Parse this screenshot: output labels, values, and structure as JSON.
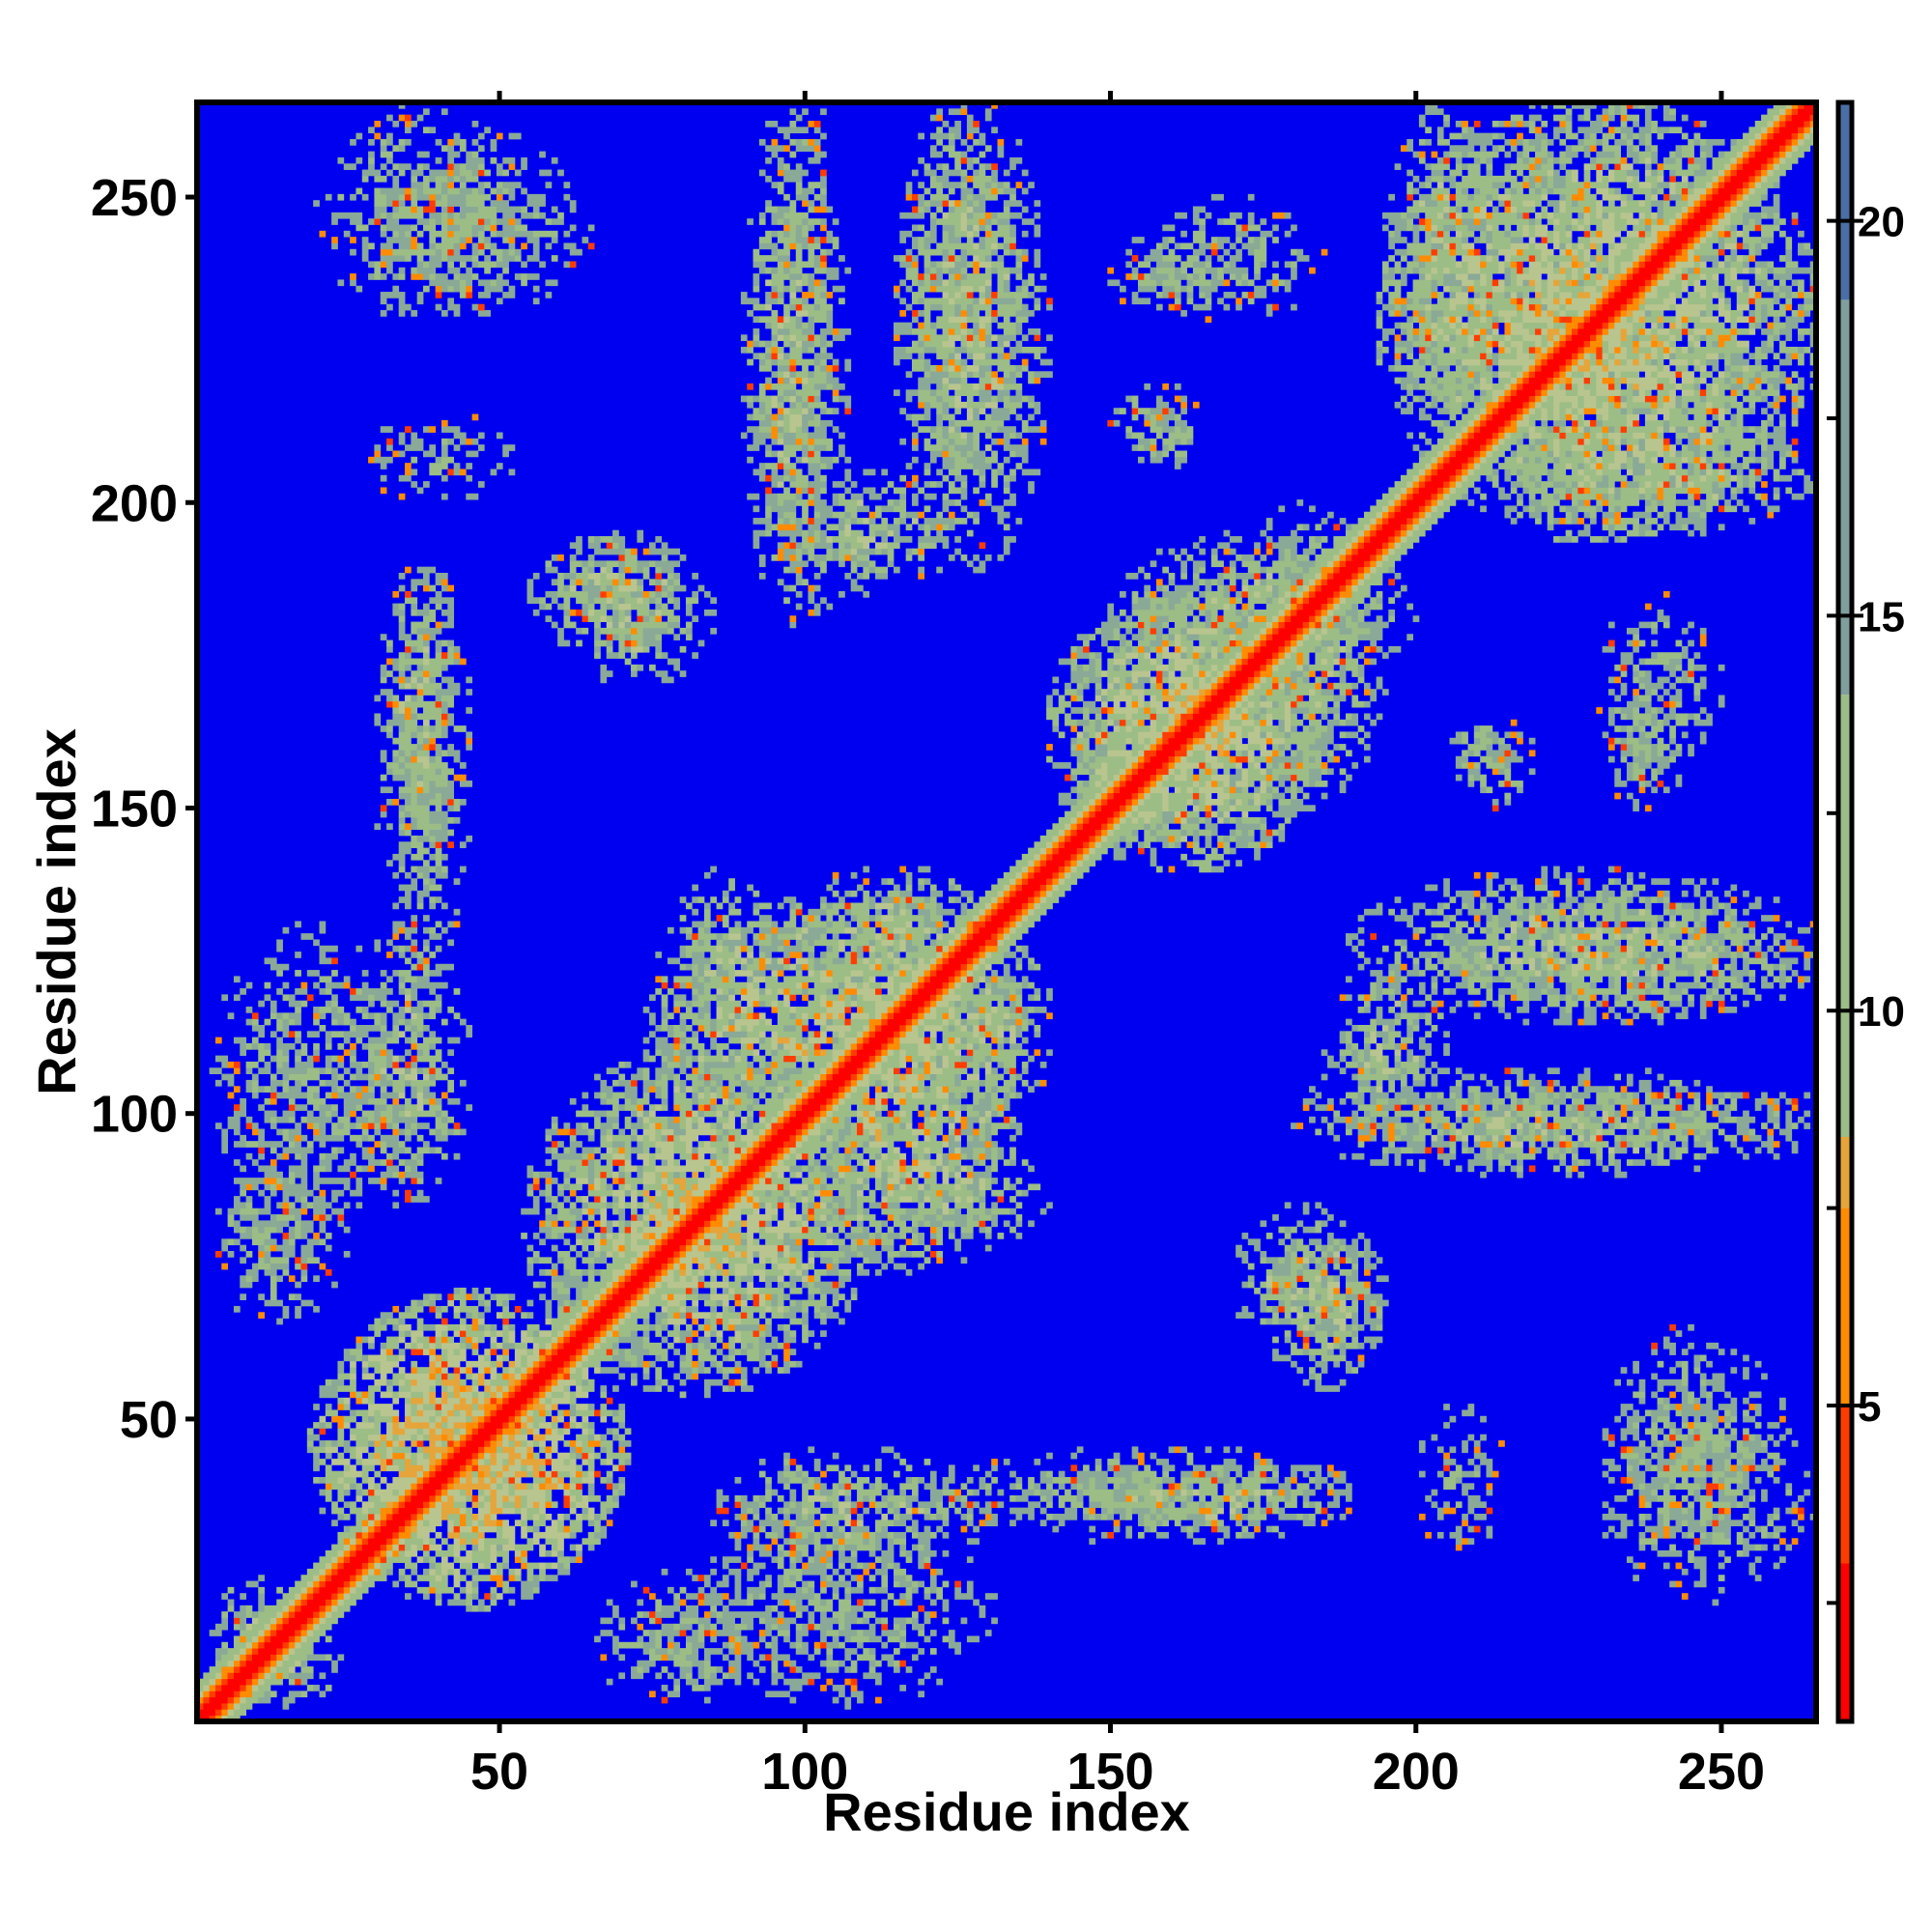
{
  "chart_data": {
    "type": "heatmap",
    "title": "",
    "xlabel": "Residue index",
    "ylabel": "Residue index",
    "n_residues": 265,
    "xlim": [
      1,
      265
    ],
    "ylim": [
      1,
      265
    ],
    "x_ticks": [
      50,
      100,
      150,
      200,
      250
    ],
    "y_ticks": [
      50,
      100,
      150,
      200,
      250
    ],
    "x_tick_labels": [
      "50",
      "100",
      "150",
      "200",
      "250"
    ],
    "y_tick_labels": [
      "50",
      "100",
      "150",
      "200",
      "250"
    ],
    "colorbar": {
      "min": 1,
      "max": 21.5,
      "ticks": [
        5,
        10,
        15,
        20
      ],
      "tick_labels": [
        "5",
        "10",
        "15",
        "20"
      ],
      "colors": [
        "#ff0000",
        "#ff8c00",
        "#9cbd86",
        "#4a6fa5"
      ],
      "background_value_color": "#0000f0"
    },
    "diagonal": {
      "description_values": "distance ~1 on diagonal increasing to ~8 at |i-j|=4",
      "core_value": 1,
      "band_halfwidth": 6
    },
    "contact_regions": [
      {
        "x": [
          20,
          70
        ],
        "y": [
          20,
          70
        ],
        "value": 9
      },
      {
        "x": [
          55,
          110
        ],
        "y": [
          55,
          110
        ],
        "value": 10
      },
      {
        "x": [
          75,
          135
        ],
        "y": [
          95,
          135
        ],
        "value": 10
      },
      {
        "x": [
          100,
          140
        ],
        "y": [
          75,
          100
        ],
        "value": 11
      },
      {
        "x": [
          95,
          135
        ],
        "y": [
          120,
          140
        ],
        "value": 11
      },
      {
        "x": [
          140,
          185
        ],
        "y": [
          140,
          185
        ],
        "value": 10
      },
      {
        "x": [
          150,
          200
        ],
        "y": [
          170,
          195
        ],
        "value": 11
      },
      {
        "x": [
          195,
          265
        ],
        "y": [
          195,
          265
        ],
        "value": 10
      },
      {
        "x": [
          200,
          240
        ],
        "y": [
          220,
          240
        ],
        "value": 11
      },
      {
        "x": [
          215,
          265
        ],
        "y": [
          195,
          215
        ],
        "value": 11
      },
      {
        "x": [
          200,
          265
        ],
        "y": [
          115,
          135
        ],
        "value": 11
      },
      {
        "x": [
          180,
          265
        ],
        "y": [
          93,
          108
        ],
        "value": 12
      },
      {
        "x": [
          170,
          195
        ],
        "y": [
          60,
          85
        ],
        "value": 11
      },
      {
        "x": [
          120,
          190
        ],
        "y": [
          30,
          45
        ],
        "value": 12
      },
      {
        "x": [
          85,
          130
        ],
        "y": [
          25,
          45
        ],
        "value": 11
      },
      {
        "x": [
          230,
          260
        ],
        "y": [
          30,
          65
        ],
        "value": 12
      },
      {
        "x": [
          200,
          215
        ],
        "y": [
          25,
          55
        ],
        "value": 13
      },
      {
        "x": [
          155,
          185
        ],
        "y": [
          230,
          250
        ],
        "value": 12
      },
      {
        "x": [
          155,
          165
        ],
        "y": [
          205,
          215
        ],
        "value": 12
      },
      {
        "x": [
          205,
          220
        ],
        "y": [
          150,
          165
        ],
        "value": 12
      },
      {
        "x": [
          230,
          245
        ],
        "y": [
          150,
          170
        ],
        "value": 12
      },
      {
        "x": [
          20,
          55
        ],
        "y": [
          230,
          265
        ],
        "value": 12
      },
      {
        "x": [
          90,
          105
        ],
        "y": [
          180,
          265
        ],
        "value": 11
      },
      {
        "x": [
          115,
          140
        ],
        "y": [
          190,
          265
        ],
        "value": 11
      },
      {
        "x": [
          30,
          45
        ],
        "y": [
          140,
          190
        ],
        "value": 11
      },
      {
        "x": [
          55,
          80
        ],
        "y": [
          175,
          195
        ],
        "value": 11
      },
      {
        "x": [
          95,
          125
        ],
        "y": [
          185,
          205
        ],
        "value": 11
      },
      {
        "x": [
          3,
          35
        ],
        "y": [
          80,
          130
        ],
        "value": 12
      },
      {
        "x": [
          65,
          95
        ],
        "y": [
          3,
          25
        ],
        "value": 12
      },
      {
        "x": [
          3,
          25
        ],
        "y": [
          3,
          20
        ],
        "value": 11
      }
    ]
  }
}
